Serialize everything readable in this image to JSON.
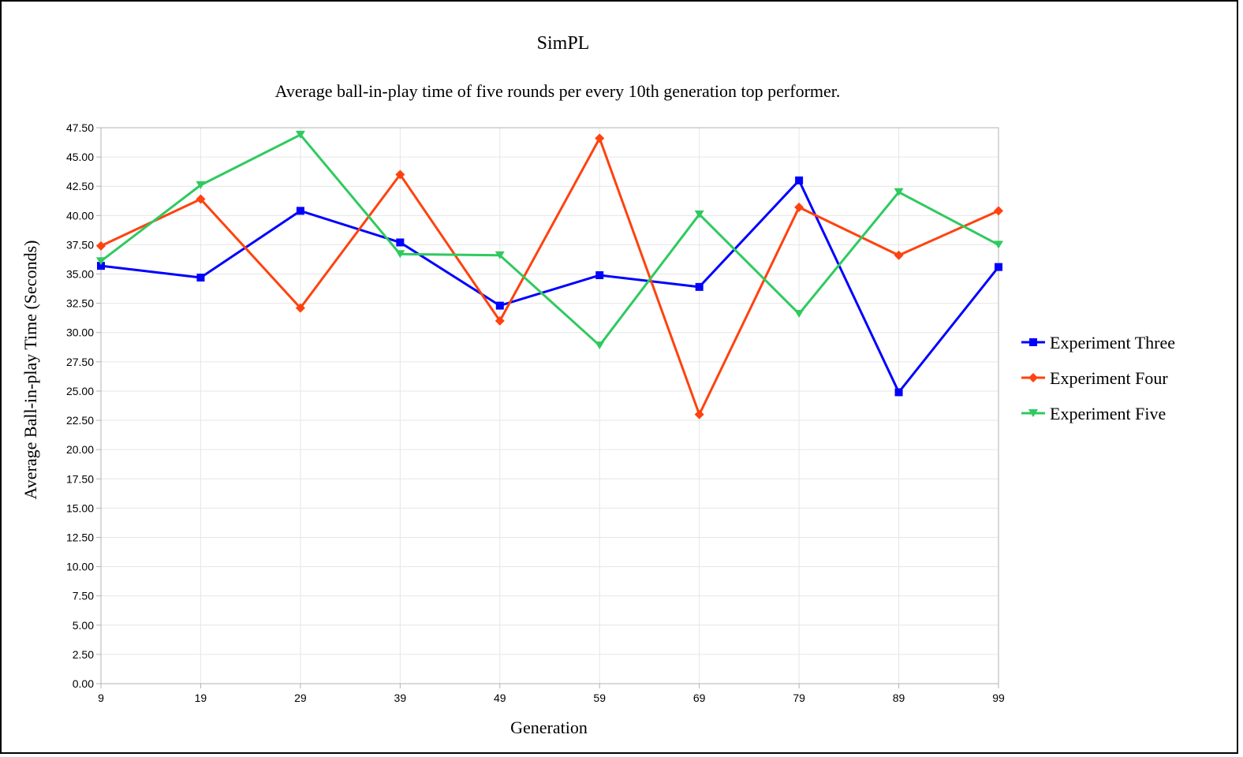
{
  "chart_data": {
    "type": "line",
    "title": "SimPL",
    "subtitle": "Average ball-in-play time of five rounds per every 10th generation top performer.",
    "xlabel": "Generation",
    "ylabel": "Average Ball-in-play Time (Seconds)",
    "categories": [
      "9",
      "19",
      "29",
      "39",
      "49",
      "59",
      "69",
      "79",
      "89",
      "99"
    ],
    "y_tick_labels": [
      "0.00",
      "2.50",
      "5.00",
      "7.50",
      "10.00",
      "12.50",
      "15.00",
      "17.50",
      "20.00",
      "22.50",
      "25.00",
      "27.50",
      "30.00",
      "32.50",
      "35.00",
      "37.50",
      "40.00",
      "42.50",
      "45.00",
      "47.50"
    ],
    "ylim": [
      0,
      47.5
    ],
    "ytick_step": 2.5,
    "grid": true,
    "legend_position": "right",
    "series": [
      {
        "name": "Experiment Three",
        "color": "#0000ff",
        "marker": "square",
        "values": [
          35.7,
          34.7,
          40.4,
          37.7,
          32.3,
          34.9,
          33.9,
          43.0,
          24.9,
          35.6
        ]
      },
      {
        "name": "Experiment Four",
        "color": "#ff420e",
        "marker": "diamond",
        "values": [
          37.4,
          41.4,
          32.1,
          43.5,
          31.0,
          46.6,
          23.0,
          40.7,
          36.6,
          40.4
        ]
      },
      {
        "name": "Experiment Five",
        "color": "#2fca5f",
        "marker": "triangle-down",
        "values": [
          36.1,
          42.6,
          46.9,
          36.7,
          36.6,
          28.9,
          40.1,
          31.6,
          42.0,
          37.5
        ]
      }
    ]
  }
}
